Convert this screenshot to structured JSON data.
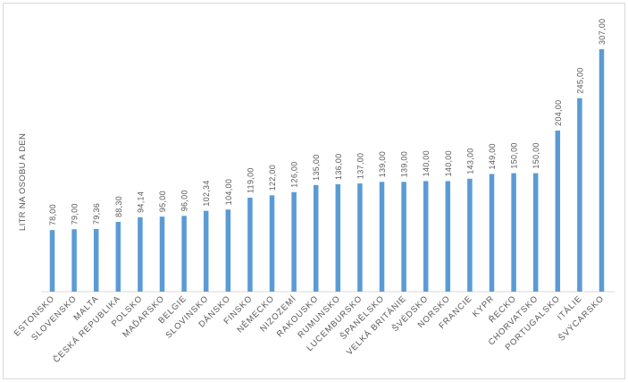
{
  "chart_data": {
    "type": "bar",
    "ylabel": "LITR NA OSOBU A DEN",
    "categories": [
      "ESTONSKO",
      "SLOVENSKO",
      "MALTA",
      "ČESKÁ REPUBLIKA",
      "POLSKO",
      "MAĎARSKO",
      "BELGIE",
      "SLOVINSKO",
      "DÁNSKO",
      "FINSKO",
      "NĚMECKO",
      "NIZOZEMÍ",
      "RAKOUSKO",
      "RUMUNSKO",
      "LUCEMBURSKO",
      "ŠPANĚLSKO",
      "VELKÁ BRITÁNIE",
      "ŠVÉDSKO",
      "NORSKO",
      "FRANCIE",
      "KYPR",
      "ŘECKO",
      "CHORVATSKO",
      "PORTUGALSKO",
      "ITÁLIE",
      "ŠVÝCARSKO"
    ],
    "values": [
      78.0,
      79.0,
      79.36,
      88.3,
      94.14,
      95.0,
      96.0,
      102.34,
      104.0,
      119.0,
      122.0,
      126.0,
      135.0,
      136.0,
      137.0,
      139.0,
      139.0,
      140.0,
      140.0,
      143.0,
      149.0,
      150.0,
      150.0,
      204.0,
      245.0,
      307.0
    ],
    "labels": [
      "78,00",
      "79,00",
      "79,36",
      "88,30",
      "94,14",
      "95,00",
      "96,00",
      "102,34",
      "104,00",
      "119,00",
      "122,00",
      "126,00",
      "135,00",
      "136,00",
      "137,00",
      "139,00",
      "139,00",
      "140,00",
      "140,00",
      "143,00",
      "149,00",
      "150,00",
      "150,00",
      "204,00",
      "245,00",
      "307,00"
    ],
    "ylim": [
      0,
      307
    ],
    "grid": false,
    "bar_color": "#5b9bd5",
    "axis_color": "#d9d9d9"
  }
}
